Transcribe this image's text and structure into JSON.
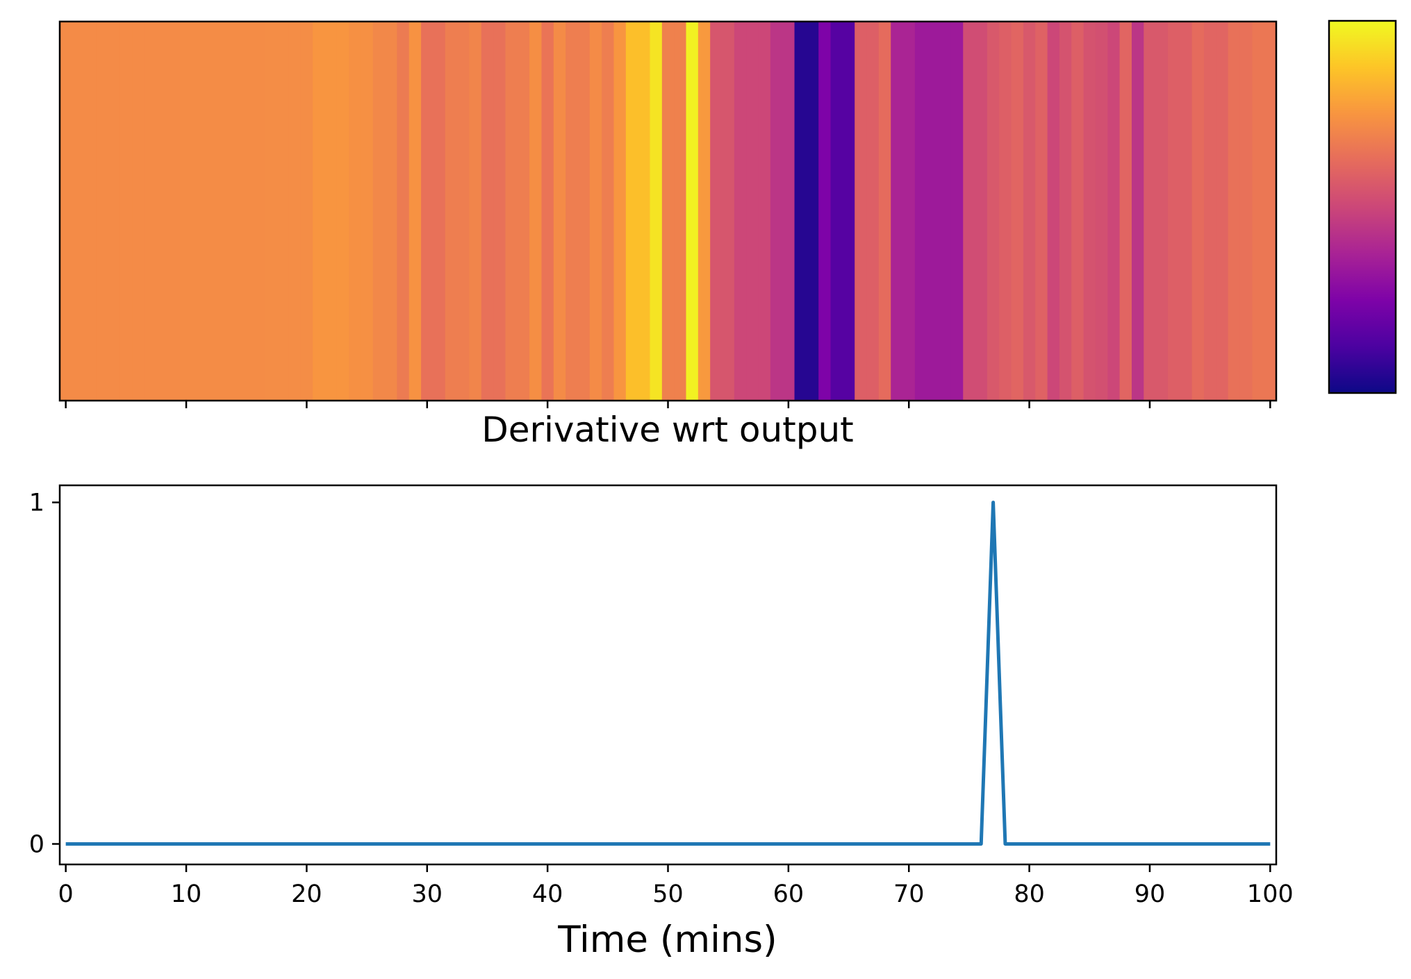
{
  "chart_data": [
    {
      "type": "heatmap",
      "title": "",
      "xlabel": "",
      "ylabel": "",
      "colormap": "plasma",
      "colorbar": true,
      "xlim": [
        -0.5,
        100.5
      ],
      "x_start": 0,
      "values": [
        0.72,
        0.72,
        0.72,
        0.72,
        0.72,
        0.72,
        0.72,
        0.72,
        0.72,
        0.72,
        0.722,
        0.722,
        0.722,
        0.722,
        0.722,
        0.722,
        0.722,
        0.725,
        0.725,
        0.725,
        0.725,
        0.75,
        0.75,
        0.75,
        0.735,
        0.735,
        0.71,
        0.71,
        0.67,
        0.74,
        0.64,
        0.64,
        0.68,
        0.68,
        0.7,
        0.64,
        0.64,
        0.68,
        0.68,
        0.73,
        0.65,
        0.72,
        0.68,
        0.68,
        0.72,
        0.68,
        0.75,
        0.86,
        0.86,
        0.95,
        0.69,
        0.69,
        0.98,
        0.76,
        0.55,
        0.55,
        0.5,
        0.5,
        0.5,
        0.44,
        0.44,
        0.05,
        0.05,
        0.25,
        0.15,
        0.15,
        0.58,
        0.58,
        0.62,
        0.38,
        0.38,
        0.34,
        0.34,
        0.34,
        0.34,
        0.52,
        0.52,
        0.56,
        0.58,
        0.6,
        0.56,
        0.59,
        0.5,
        0.54,
        0.58,
        0.54,
        0.53,
        0.5,
        0.6,
        0.44,
        0.56,
        0.56,
        0.58,
        0.58,
        0.62,
        0.6,
        0.6,
        0.64,
        0.64,
        0.66,
        0.66
      ],
      "xticks": [
        0,
        10,
        20,
        30,
        40,
        50,
        60,
        70,
        80,
        90,
        100
      ]
    },
    {
      "type": "line",
      "title": "Derivative wrt output",
      "xlabel": "Time (mins)",
      "ylabel": "",
      "xlim": [
        -0.5,
        100.5
      ],
      "ylim": [
        -0.06,
        1.05
      ],
      "xticks": [
        0,
        10,
        20,
        30,
        40,
        50,
        60,
        70,
        80,
        90,
        100
      ],
      "yticks": [
        0,
        1
      ],
      "grid": false,
      "color": "#1f77b4",
      "series": [
        {
          "x": [
            0,
            76,
            77,
            78,
            100
          ],
          "y": [
            0,
            0,
            1,
            0,
            0
          ]
        }
      ]
    }
  ]
}
